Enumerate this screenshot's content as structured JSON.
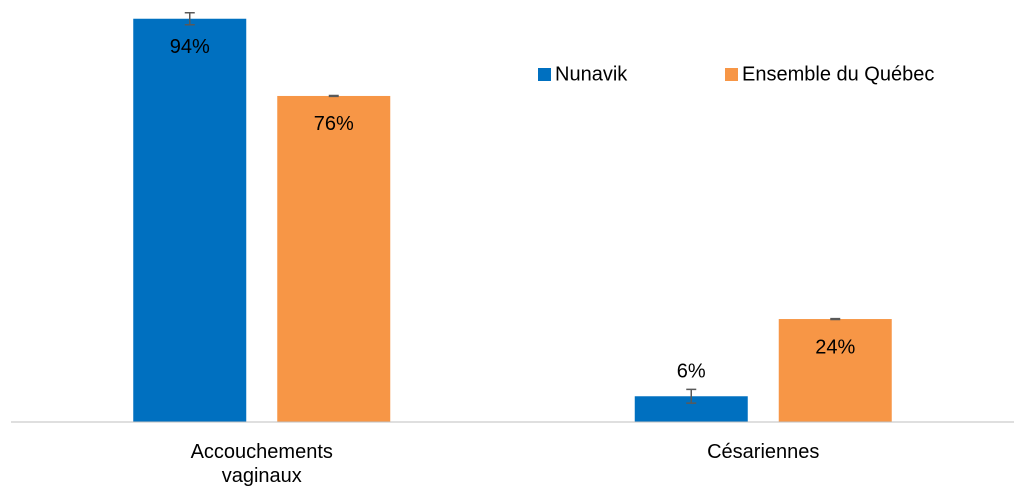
{
  "chart_data": {
    "type": "bar",
    "categories": [
      "Accouchements vaginaux",
      "Césariennes"
    ],
    "series": [
      {
        "name": "Nunavik",
        "color": "#0070c0",
        "values": [
          94,
          6
        ],
        "value_labels": [
          "94%",
          "6%"
        ],
        "errors": [
          1.4,
          1.6
        ]
      },
      {
        "name": "Ensemble du Québec",
        "color": "#f79646",
        "values": [
          76,
          24
        ],
        "value_labels": [
          "76%",
          "24%"
        ],
        "errors": [
          0.1,
          0.1
        ]
      }
    ],
    "ylim": [
      0,
      100
    ],
    "legend": "top-right"
  }
}
